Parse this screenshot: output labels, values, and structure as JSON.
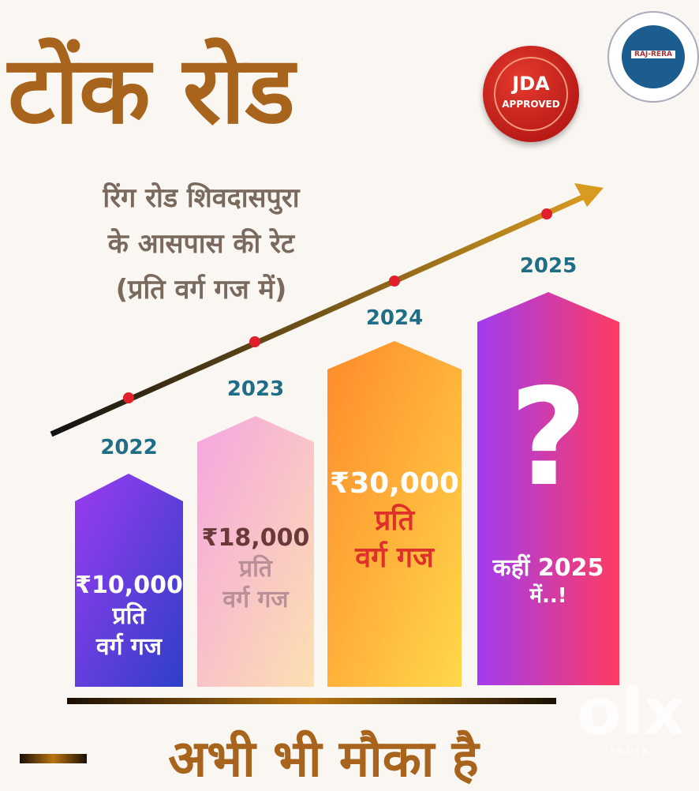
{
  "header": {
    "title": "टोंक रोड",
    "subtitle_lines": [
      "रिंग रोड शिवदासपुरा",
      "के आसपास की रेट",
      "(प्रति वर्ग गज में)"
    ]
  },
  "badges": {
    "seal_line1": "JDA",
    "seal_line2": "APPROVED",
    "rera_label": "RAJ-RERA"
  },
  "bars": [
    {
      "year": "2022",
      "price": "₹10,000",
      "unit_line1": "प्रति",
      "unit_line2": "वर्ग गज"
    },
    {
      "year": "2023",
      "price": "₹18,000",
      "unit_line1": "प्रति",
      "unit_line2": "वर्ग गज"
    },
    {
      "year": "2024",
      "price": "₹30,000",
      "unit_line1": "प्रति",
      "unit_line2": "वर्ग गज"
    },
    {
      "year": "2025",
      "price": "?",
      "unit_line1": "कहीं 2025",
      "unit_line2": "में..!"
    }
  ],
  "footer": {
    "tagline": "अभी भी मौका है"
  },
  "watermark": {
    "brand": "olx",
    "sub": "INDIA"
  },
  "colors": {
    "title": "#a8631c",
    "year": "#1f6e86",
    "seal": "#c8191a",
    "rera": "#1b5d8e"
  }
}
